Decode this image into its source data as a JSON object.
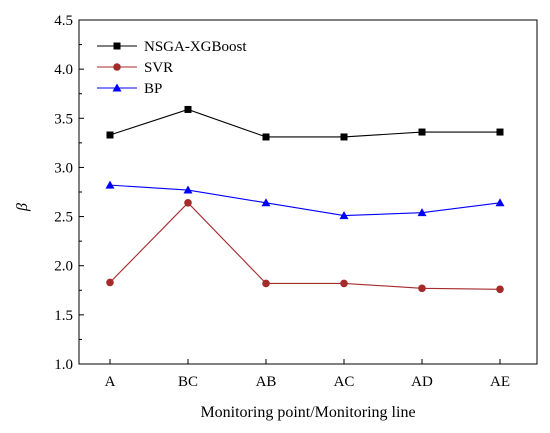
{
  "chart_data": {
    "type": "line",
    "title": "",
    "xlabel": "Monitoring point/Monitoring line",
    "ylabel": "β",
    "categories": [
      "A",
      "BC",
      "AB",
      "AC",
      "AD",
      "AE"
    ],
    "ylim": [
      1.0,
      4.5
    ],
    "yticks": [
      "1.0",
      "1.5",
      "2.0",
      "2.5",
      "3.0",
      "3.5",
      "4.0",
      "4.5"
    ],
    "grid": false,
    "legend_position": "top-left",
    "series": [
      {
        "name": "NSGA-XGBoost",
        "color": "#000000",
        "marker": "square",
        "values": [
          3.33,
          3.59,
          3.31,
          3.31,
          3.36,
          3.36
        ]
      },
      {
        "name": "SVR",
        "color": "#a52a2a",
        "marker": "circle",
        "values": [
          1.83,
          2.64,
          1.82,
          1.82,
          1.77,
          1.76
        ]
      },
      {
        "name": "BP",
        "color": "#0000ff",
        "marker": "triangle",
        "values": [
          2.82,
          2.77,
          2.64,
          2.51,
          2.54,
          2.64
        ]
      }
    ]
  }
}
